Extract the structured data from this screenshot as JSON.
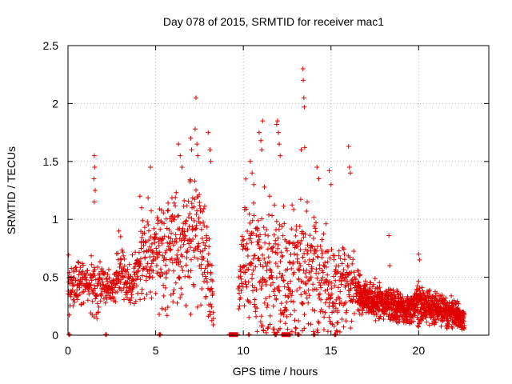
{
  "chart_data": {
    "type": "scatter",
    "title": "Day 078 of 2015, SRMTID for receiver mac1",
    "xlabel": "GPS time / hours",
    "ylabel": "SRMTID / TECUs",
    "xlim": [
      0,
      24
    ],
    "ylim": [
      0,
      2.5
    ],
    "xticks": [
      "0",
      "5",
      "10",
      "15",
      "20"
    ],
    "xtick_values": [
      0,
      5,
      10,
      15,
      20
    ],
    "yticks": [
      "0",
      "0.5",
      "1",
      "1.5",
      "2",
      "2.5"
    ],
    "ytick_values": [
      0,
      0.5,
      1,
      1.5,
      2,
      2.5
    ],
    "grid": true,
    "marker": "+",
    "series": [
      {
        "name": "SRMTID",
        "color": "#e00000",
        "profile_x": [
          0,
          0.5,
          1,
          1.5,
          2,
          2.5,
          3,
          3.5,
          4,
          4.5,
          5,
          5.5,
          6,
          6.5,
          7,
          7.5,
          8,
          8.5,
          9,
          9.5,
          10,
          10.5,
          11,
          11.5,
          12,
          12.5,
          13,
          13.5,
          14,
          14.5,
          15,
          15.5,
          16,
          16.5,
          17,
          17.5,
          18,
          18.5,
          19,
          19.5,
          20,
          20.5,
          21,
          21.5,
          22,
          22.5
        ],
        "profile_mean": [
          0.42,
          0.45,
          0.48,
          0.4,
          0.45,
          0.38,
          0.55,
          0.4,
          0.58,
          0.75,
          0.7,
          0.62,
          0.8,
          0.75,
          0.88,
          0.82,
          0.6,
          0.0,
          0.0,
          0.0,
          0.75,
          0.7,
          0.65,
          0.55,
          0.6,
          0.45,
          0.55,
          0.6,
          0.5,
          0.4,
          0.45,
          0.35,
          0.45,
          0.38,
          0.32,
          0.3,
          0.28,
          0.26,
          0.24,
          0.22,
          0.28,
          0.25,
          0.22,
          0.22,
          0.18,
          0.15
        ],
        "profile_spread": [
          0.15,
          0.12,
          0.12,
          0.2,
          0.12,
          0.1,
          0.15,
          0.15,
          0.2,
          0.3,
          0.25,
          0.3,
          0.35,
          0.35,
          0.35,
          0.35,
          0.3,
          0.0,
          0.0,
          0.0,
          0.4,
          0.4,
          0.45,
          0.45,
          0.45,
          0.35,
          0.4,
          0.45,
          0.4,
          0.3,
          0.3,
          0.25,
          0.25,
          0.12,
          0.1,
          0.1,
          0.1,
          0.1,
          0.09,
          0.08,
          0.12,
          0.1,
          0.09,
          0.09,
          0.08,
          0.06
        ],
        "outliers": [
          [
            1.5,
            1.55
          ],
          [
            1.52,
            1.45
          ],
          [
            1.48,
            1.35
          ],
          [
            1.55,
            1.25
          ],
          [
            1.5,
            1.15
          ],
          [
            2.9,
            0.9
          ],
          [
            3.0,
            0.85
          ],
          [
            4.1,
            1.2
          ],
          [
            4.2,
            1.1
          ],
          [
            4.7,
            1.45
          ],
          [
            6.3,
            1.65
          ],
          [
            6.4,
            1.55
          ],
          [
            6.5,
            1.45
          ],
          [
            7.0,
            1.7
          ],
          [
            7.05,
            1.6
          ],
          [
            7.25,
            1.78
          ],
          [
            7.3,
            2.05
          ],
          [
            7.35,
            1.65
          ],
          [
            7.4,
            1.55
          ],
          [
            8.0,
            1.75
          ],
          [
            8.1,
            1.6
          ],
          [
            8.15,
            1.5
          ],
          [
            10.4,
            1.5
          ],
          [
            10.5,
            1.4
          ],
          [
            10.6,
            1.3
          ],
          [
            10.9,
            1.75
          ],
          [
            11.0,
            1.68
          ],
          [
            11.05,
            1.6
          ],
          [
            11.1,
            1.85
          ],
          [
            11.5,
            1.2
          ],
          [
            11.9,
            1.82
          ],
          [
            11.95,
            1.85
          ],
          [
            12.0,
            1.75
          ],
          [
            12.05,
            1.65
          ],
          [
            12.1,
            1.55
          ],
          [
            13.3,
            1.6
          ],
          [
            13.4,
            2.3
          ],
          [
            13.42,
            2.2
          ],
          [
            13.45,
            2.05
          ],
          [
            13.48,
            1.97
          ],
          [
            13.5,
            1.62
          ],
          [
            14.2,
            1.45
          ],
          [
            14.3,
            1.35
          ],
          [
            14.9,
            1.42
          ],
          [
            15.0,
            1.3
          ],
          [
            16.0,
            1.63
          ],
          [
            16.05,
            1.45
          ],
          [
            16.1,
            1.4
          ],
          [
            18.3,
            0.86
          ],
          [
            18.35,
            0.6
          ],
          [
            20.0,
            0.7
          ],
          [
            20.05,
            0.65
          ],
          [
            7.0,
            0.18
          ],
          [
            5.2,
            0.18
          ]
        ],
        "zero_clusters": [
          [
            0.05,
            0.1
          ],
          [
            2.15,
            2.2
          ],
          [
            5.2,
            5.3
          ],
          [
            9.2,
            9.7
          ],
          [
            10.3,
            10.35
          ],
          [
            11.8,
            11.9
          ],
          [
            12.2,
            12.7
          ],
          [
            13.1,
            13.2
          ],
          [
            14.0,
            14.1
          ],
          [
            15.2,
            15.3
          ]
        ]
      }
    ]
  }
}
